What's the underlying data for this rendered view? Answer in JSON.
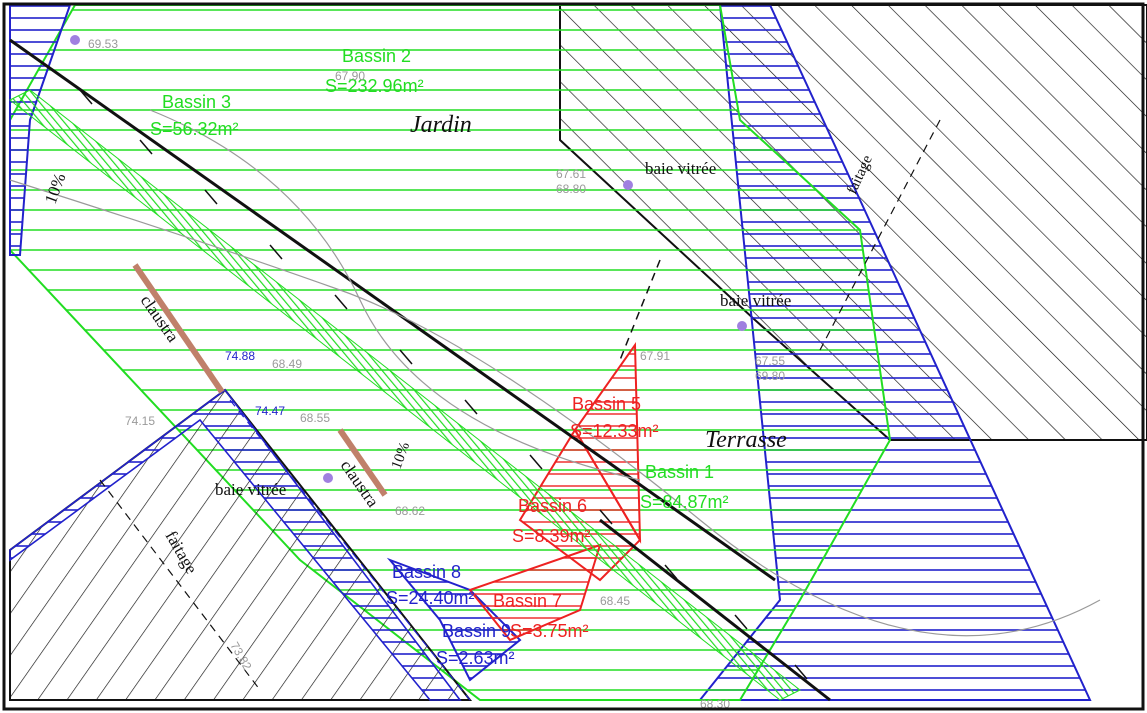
{
  "colors": {
    "green": "#22dd22",
    "blue": "#2222cc",
    "red": "#ee2222",
    "black": "#111111",
    "grey": "#9a9a9a",
    "claustra": "#c0806a",
    "marker": "#a080e0"
  },
  "rooms": {
    "jardin": "Jardin",
    "terrasse": "Terrasse"
  },
  "windows": {
    "top": "baie vitrée",
    "middle": "baie vitrée",
    "left": "baie vitrée"
  },
  "claustra": {
    "upper": "claustra",
    "lower": "claustra"
  },
  "ridges": {
    "left": "faitage",
    "right": "faitage"
  },
  "slopes": {
    "left": "10%",
    "middle": "10%"
  },
  "basins": {
    "b1": {
      "name": "Bassin 1",
      "area": "S=84.87m²"
    },
    "b2": {
      "name": "Bassin 2",
      "area": "S=232.96m²"
    },
    "b3": {
      "name": "Bassin 3",
      "area": "S=56.32m²"
    },
    "b5": {
      "name": "Bassin 5",
      "area": "S=12.33m²"
    },
    "b6": {
      "name": "Bassin 6",
      "area": "S=8.39m²"
    },
    "b7": {
      "name": "Bassin 7",
      "area": "S=3.75m²"
    },
    "b8": {
      "name": "Bassin 8",
      "area": "S=24.40m²"
    },
    "b9": {
      "name": "Bassin 9",
      "area": "S=2.63m²"
    }
  },
  "levels": {
    "l1": "69.53",
    "l2": "67.90",
    "l3": "67.61",
    "l4": "68.80",
    "l5": "74.88",
    "l6": "68.49",
    "l7": "74.47",
    "l8": "68.55",
    "l9": "74.15",
    "l10": "67.91",
    "l11": "67.55",
    "l12": "69.80",
    "l13": "68.62",
    "l14": "73.82",
    "l15": "68.45",
    "l16": "68.30"
  }
}
